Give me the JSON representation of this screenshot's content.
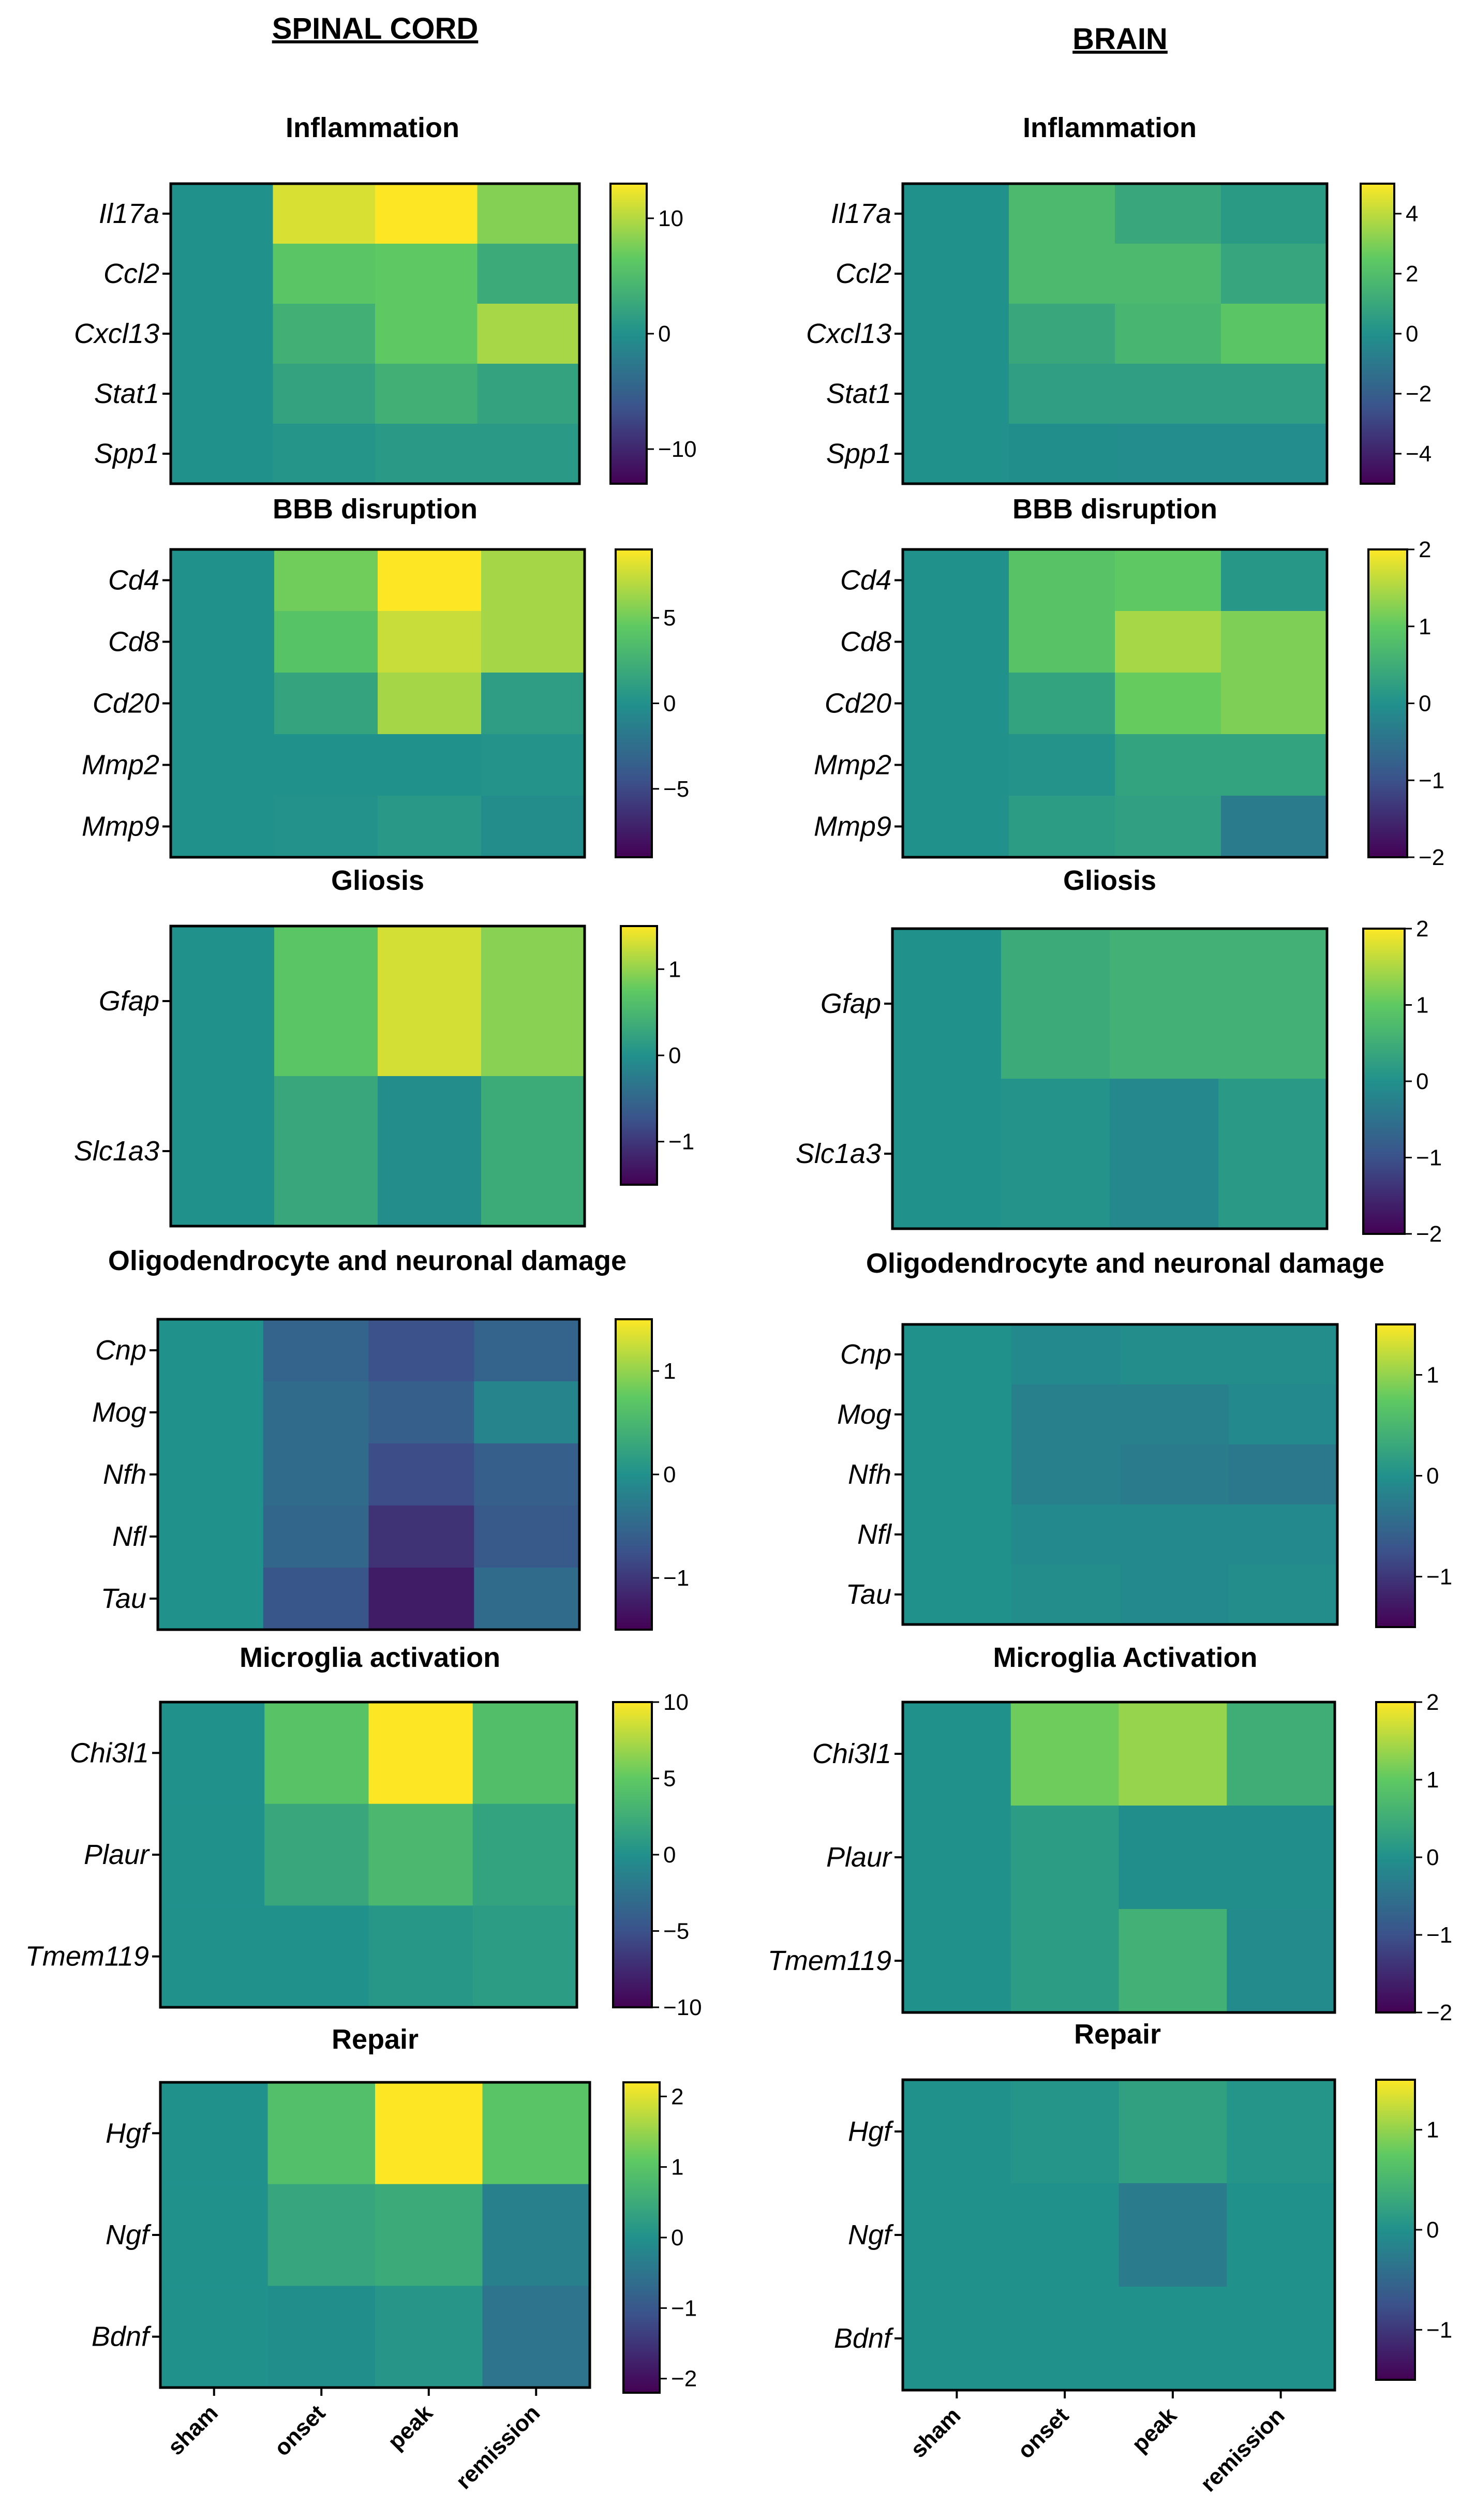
{
  "figure": {
    "columns": [
      {
        "title": "SPINAL CORD"
      },
      {
        "title": "BRAIN"
      }
    ],
    "x_categories": [
      "sham",
      "onset",
      "peak",
      "remission"
    ],
    "colormap": {
      "name": "viridis",
      "stops": [
        "#440154",
        "#3b528b",
        "#21918c",
        "#5ec962",
        "#fde725"
      ]
    }
  },
  "chart_data": [
    {
      "type": "heatmap",
      "region": "SPINAL CORD",
      "title": "Inflammation",
      "rows": [
        "Il17a",
        "Ccl2",
        "Cxcl13",
        "Stat1",
        "Spp1"
      ],
      "columns": [
        "sham",
        "onset",
        "peak",
        "remission"
      ],
      "values": [
        [
          0,
          11.5,
          13,
          8
        ],
        [
          0,
          6,
          6.5,
          3
        ],
        [
          0,
          3.5,
          6.5,
          9.5
        ],
        [
          0,
          2,
          3.5,
          2
        ],
        [
          0,
          0.5,
          1,
          1
        ]
      ],
      "colorbar": {
        "min": -13,
        "max": 13,
        "ticks": [
          10,
          0,
          -10
        ],
        "tick_labels": [
          "10",
          "0",
          "−10"
        ]
      }
    },
    {
      "type": "heatmap",
      "region": "BRAIN",
      "title": "Inflammation",
      "rows": [
        "Il17a",
        "Ccl2",
        "Cxcl13",
        "Stat1",
        "Spp1"
      ],
      "columns": [
        "sham",
        "onset",
        "peak",
        "remission"
      ],
      "values": [
        [
          0,
          1.8,
          1,
          0.4
        ],
        [
          0,
          1.8,
          1.8,
          0.9
        ],
        [
          0,
          1,
          1.6,
          2.3
        ],
        [
          0,
          0.6,
          0.6,
          0.6
        ],
        [
          0,
          -0.1,
          -0.2,
          -0.2
        ]
      ],
      "colorbar": {
        "min": -5,
        "max": 5,
        "ticks": [
          4,
          2,
          0,
          -2,
          -4
        ],
        "tick_labels": [
          "4",
          "2",
          "0",
          "−2",
          "−4"
        ]
      }
    },
    {
      "type": "heatmap",
      "region": "SPINAL CORD",
      "title": "BBB disruption",
      "rows": [
        "Cd4",
        "Cd8",
        "Cd20",
        "Mmp2",
        "Mmp9"
      ],
      "columns": [
        "sham",
        "onset",
        "peak",
        "remission"
      ],
      "values": [
        [
          0,
          5,
          9,
          6.5
        ],
        [
          0,
          4,
          7.5,
          6.5
        ],
        [
          0,
          1.5,
          6.5,
          1
        ],
        [
          0,
          0,
          0,
          0.2
        ],
        [
          0,
          0.1,
          0.6,
          -0.3
        ]
      ],
      "colorbar": {
        "min": -9,
        "max": 9,
        "ticks": [
          5,
          0,
          -5
        ],
        "tick_labels": [
          "5",
          "0",
          "−5"
        ]
      }
    },
    {
      "type": "heatmap",
      "region": "BRAIN",
      "title": "BBB disruption",
      "rows": [
        "Cd4",
        "Cd8",
        "Cd20",
        "Mmp2",
        "Mmp9"
      ],
      "columns": [
        "sham",
        "onset",
        "peak",
        "remission"
      ],
      "values": [
        [
          0,
          0.9,
          1,
          0.1
        ],
        [
          0,
          0.9,
          1.45,
          1.2
        ],
        [
          0,
          0.3,
          1.05,
          1.2
        ],
        [
          0,
          0.05,
          0.3,
          0.3
        ],
        [
          0,
          0.2,
          0.25,
          -0.35
        ]
      ],
      "colorbar": {
        "min": -2,
        "max": 2,
        "ticks": [
          2,
          1,
          0,
          -1,
          -2
        ],
        "tick_labels": [
          "2",
          "1",
          "0",
          "−1",
          "−2"
        ]
      }
    },
    {
      "type": "heatmap",
      "region": "SPINAL CORD",
      "title": "Gliosis",
      "rows": [
        "Gfap",
        "Slc1a3"
      ],
      "columns": [
        "sham",
        "onset",
        "peak",
        "remission"
      ],
      "values": [
        [
          0,
          0.7,
          1.3,
          0.95
        ],
        [
          0,
          0.3,
          -0.05,
          0.35
        ]
      ],
      "colorbar": {
        "min": -1.5,
        "max": 1.5,
        "ticks": [
          1,
          0,
          -1
        ],
        "tick_labels": [
          "1",
          "0",
          "−1"
        ]
      }
    },
    {
      "type": "heatmap",
      "region": "BRAIN",
      "title": "Gliosis",
      "rows": [
        "Gfap",
        "Slc1a3"
      ],
      "columns": [
        "sham",
        "onset",
        "peak",
        "remission"
      ],
      "values": [
        [
          0,
          0.45,
          0.55,
          0.55
        ],
        [
          0,
          0.05,
          -0.15,
          0.15
        ]
      ],
      "colorbar": {
        "min": -2,
        "max": 2,
        "ticks": [
          2,
          1,
          0,
          -1,
          -2
        ],
        "tick_labels": [
          "2",
          "1",
          "0",
          "−1",
          "−2"
        ]
      }
    },
    {
      "type": "heatmap",
      "region": "SPINAL CORD",
      "title": "Oligodendrocyte and neuronal damage",
      "rows": [
        "Cnp",
        "Mog",
        "Nfh",
        "Nfl",
        "Tau"
      ],
      "columns": [
        "sham",
        "onset",
        "peak",
        "remission"
      ],
      "values": [
        [
          0,
          -0.55,
          -0.75,
          -0.55
        ],
        [
          0,
          -0.45,
          -0.6,
          -0.15
        ],
        [
          0,
          -0.45,
          -0.8,
          -0.6
        ],
        [
          0,
          -0.5,
          -1.05,
          -0.65
        ],
        [
          0,
          -0.7,
          -1.25,
          -0.45
        ]
      ],
      "colorbar": {
        "min": -1.5,
        "max": 1.5,
        "ticks": [
          1,
          0,
          -1
        ],
        "tick_labels": [
          "1",
          "0",
          "−1"
        ]
      }
    },
    {
      "type": "heatmap",
      "region": "BRAIN",
      "title": "Oligodendrocyte and neuronal damage",
      "rows": [
        "Cnp",
        "Mog",
        "Nfh",
        "Nfl",
        "Tau"
      ],
      "columns": [
        "sham",
        "onset",
        "peak",
        "remission"
      ],
      "values": [
        [
          0,
          -0.1,
          -0.05,
          -0.05
        ],
        [
          0,
          -0.2,
          -0.2,
          -0.1
        ],
        [
          0,
          -0.2,
          -0.25,
          -0.3
        ],
        [
          0,
          -0.1,
          -0.1,
          -0.1
        ],
        [
          0,
          -0.05,
          -0.1,
          -0.05
        ]
      ],
      "colorbar": {
        "min": -1.5,
        "max": 1.5,
        "ticks": [
          1,
          0,
          -1
        ],
        "tick_labels": [
          "1",
          "0",
          "−1"
        ]
      }
    },
    {
      "type": "heatmap",
      "region": "SPINAL CORD",
      "title": "Microglia activation",
      "rows": [
        "Chi3l1",
        "Plaur",
        "Tmem119"
      ],
      "columns": [
        "sham",
        "onset",
        "peak",
        "remission"
      ],
      "values": [
        [
          0,
          4.5,
          10,
          4
        ],
        [
          0,
          2,
          3.5,
          1.5
        ],
        [
          0,
          0,
          0.5,
          1
        ]
      ],
      "colorbar": {
        "min": -10,
        "max": 10,
        "ticks": [
          10,
          5,
          0,
          -5,
          -10
        ],
        "tick_labels": [
          "10",
          "5",
          "0",
          "−5",
          "−10"
        ]
      }
    },
    {
      "type": "heatmap",
      "region": "BRAIN",
      "title": "Microglia Activation",
      "rows": [
        "Chi3l1",
        "Plaur",
        "Tmem119"
      ],
      "columns": [
        "sham",
        "onset",
        "peak",
        "remission"
      ],
      "values": [
        [
          0,
          1.1,
          1.35,
          0.5
        ],
        [
          0,
          0.2,
          -0.05,
          -0.05
        ],
        [
          0,
          0.2,
          0.55,
          -0.1
        ]
      ],
      "colorbar": {
        "min": -2,
        "max": 2,
        "ticks": [
          2,
          1,
          0,
          -1,
          -2
        ],
        "tick_labels": [
          "2",
          "1",
          "0",
          "−1",
          "−2"
        ]
      }
    },
    {
      "type": "heatmap",
      "region": "SPINAL CORD",
      "title": "Repair",
      "rows": [
        "Hgf",
        "Ngf",
        "Bdnf"
      ],
      "columns": [
        "sham",
        "onset",
        "peak",
        "remission"
      ],
      "values": [
        [
          0,
          0.9,
          2.2,
          1.0
        ],
        [
          0,
          0.4,
          0.5,
          -0.3
        ],
        [
          0,
          -0.05,
          0.1,
          -0.5
        ]
      ],
      "colorbar": {
        "min": -2.2,
        "max": 2.2,
        "ticks": [
          2,
          1,
          0,
          -1,
          -2
        ],
        "tick_labels": [
          "2",
          "1",
          "0",
          "−1",
          "−2"
        ]
      }
    },
    {
      "type": "heatmap",
      "region": "BRAIN",
      "title": "Repair",
      "rows": [
        "Hgf",
        "Ngf",
        "Bdnf"
      ],
      "columns": [
        "sham",
        "onset",
        "peak",
        "remission"
      ],
      "values": [
        [
          0,
          0.05,
          0.2,
          0.05
        ],
        [
          0,
          0,
          -0.25,
          0
        ],
        [
          0,
          0,
          0,
          0
        ]
      ],
      "colorbar": {
        "min": -1.5,
        "max": 1.5,
        "ticks": [
          1,
          0,
          -1
        ],
        "tick_labels": [
          "1",
          "0",
          "−1"
        ]
      }
    }
  ]
}
